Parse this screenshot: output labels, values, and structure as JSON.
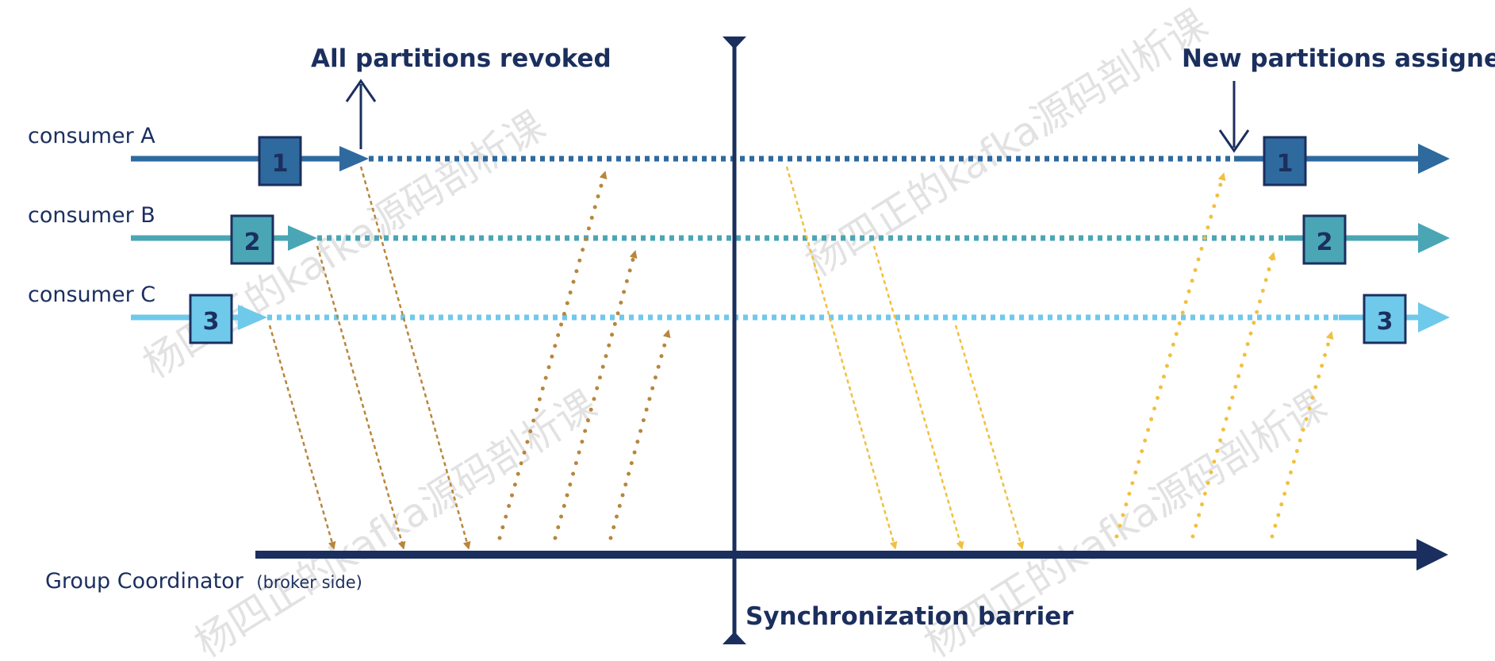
{
  "titles": {
    "revoked": "All partitions revoked",
    "assigned": "New partitions assigned",
    "barrier": "Synchronization barrier"
  },
  "consumers": [
    {
      "label": "consumer A",
      "partition": "1",
      "color": "#2e6a9e",
      "box_color": "#2e6a9e"
    },
    {
      "label": "consumer B",
      "partition": "2",
      "color": "#4aa6b5",
      "box_color": "#4aa6b5"
    },
    {
      "label": "consumer C",
      "partition": "3",
      "color": "#6fc9ea",
      "box_color": "#6fc9ea"
    }
  ],
  "coordinator": {
    "label": "Group Coordinator",
    "sub_label": "(broker side)",
    "color": "#1b2f5e"
  },
  "watermark": "杨四正的kafka源码剖析课",
  "colors": {
    "phase1_message": "#b8863b",
    "phase2_message": "#f0c040",
    "text": "#1b2f5e"
  }
}
